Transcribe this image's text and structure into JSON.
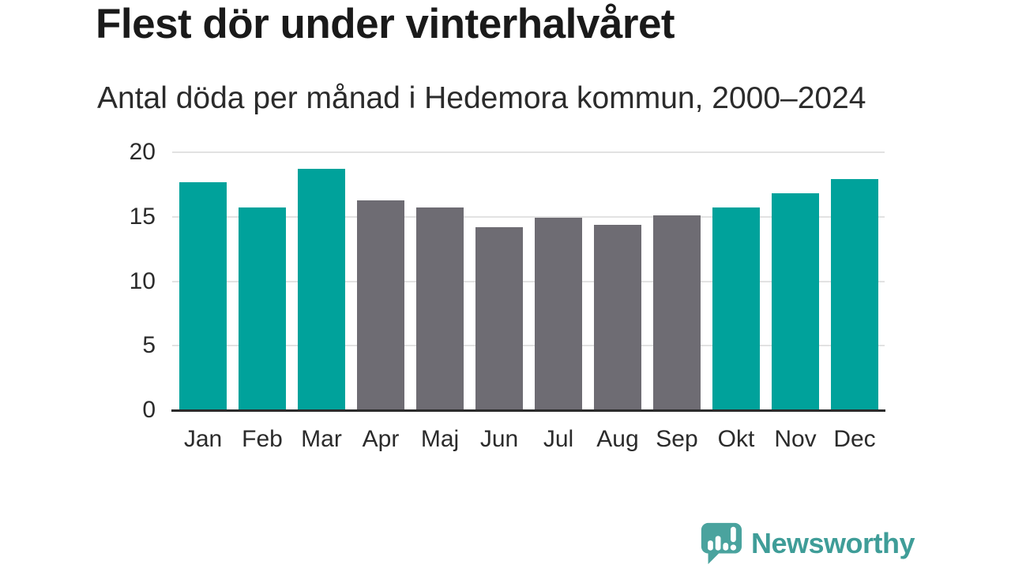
{
  "chart_data": {
    "type": "bar",
    "title": "Flest dör under vinterhalvåret",
    "subtitle": "Antal döda per månad i Hedemora kommun, 2000–2024",
    "categories": [
      "Jan",
      "Feb",
      "Mar",
      "Apr",
      "Maj",
      "Jun",
      "Jul",
      "Aug",
      "Sep",
      "Okt",
      "Nov",
      "Dec"
    ],
    "values": [
      17.7,
      15.7,
      18.7,
      16.3,
      15.7,
      14.2,
      14.9,
      14.4,
      15.1,
      15.7,
      16.8,
      17.9
    ],
    "highlighted": [
      true,
      true,
      true,
      false,
      false,
      false,
      false,
      false,
      false,
      true,
      true,
      true
    ],
    "xlabel": "",
    "ylabel": "",
    "ylim": [
      0,
      20
    ],
    "yticks": [
      0,
      5,
      10,
      15,
      20
    ],
    "grid": "horizontal",
    "legend": "none",
    "colors": {
      "highlight": "#00a29b",
      "base": "#6e6c73",
      "gridline": "#e2e2e2",
      "axis_line": "#2b2b2b",
      "tick_text": "#2b2b2b"
    }
  },
  "logo": {
    "text": "Newsworthy",
    "icon": "bar-chart-speech-bubble-icon",
    "icon_color": "#4aa39e",
    "text_color": "#3f9d98"
  }
}
